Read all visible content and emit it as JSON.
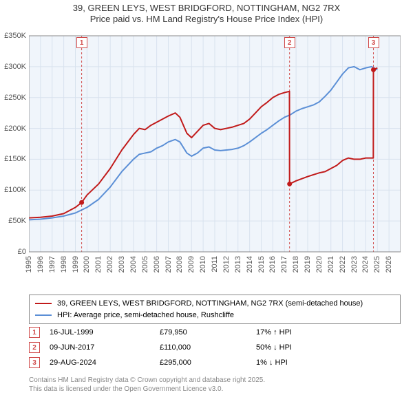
{
  "title": {
    "line1": "39, GREEN LEYS, WEST BRIDGFORD, NOTTINGHAM, NG2 7RX",
    "line2": "Price paid vs. HM Land Registry's House Price Index (HPI)",
    "fontsize": 13,
    "color": "#333333"
  },
  "chart": {
    "type": "line",
    "background_color": "#ffffff",
    "plot_bgcolor": "#f0f5fb",
    "grid_color": "#d8e2ee",
    "axis_color": "#888888",
    "tick_label_color": "#555555",
    "tick_fontsize": 11,
    "x": {
      "min": 1995,
      "max": 2027,
      "ticks": [
        1995,
        1996,
        1997,
        1998,
        1999,
        2000,
        2001,
        2002,
        2003,
        2004,
        2005,
        2006,
        2007,
        2008,
        2009,
        2010,
        2011,
        2012,
        2013,
        2014,
        2015,
        2016,
        2017,
        2018,
        2019,
        2020,
        2021,
        2022,
        2023,
        2024,
        2025,
        2026
      ]
    },
    "y": {
      "min": 0,
      "max": 350000,
      "ticks": [
        0,
        50000,
        100000,
        150000,
        200000,
        250000,
        300000,
        350000
      ],
      "tick_labels": [
        "£0",
        "£50K",
        "£100K",
        "£150K",
        "£200K",
        "£250K",
        "£300K",
        "£350K"
      ]
    },
    "marker_lines": {
      "color": "#d04a4a",
      "dash": "3,3",
      "width": 1,
      "years": [
        1999.54,
        2017.44,
        2024.66
      ]
    },
    "marker_badges": [
      {
        "n": "1",
        "year": 1999.54,
        "color": "#d04a4a"
      },
      {
        "n": "2",
        "year": 2017.44,
        "color": "#d04a4a"
      },
      {
        "n": "3",
        "year": 2024.66,
        "color": "#d04a4a"
      }
    ],
    "sale_points": {
      "color": "#c11a1a",
      "radius": 3.5,
      "points": [
        {
          "year": 1999.54,
          "value": 79950
        },
        {
          "year": 2017.44,
          "value": 110000
        },
        {
          "year": 2024.66,
          "value": 295000
        }
      ]
    },
    "series": [
      {
        "id": "price_paid",
        "label": "39, GREEN LEYS, WEST BRIDGFORD, NOTTINGHAM, NG2 7RX (semi-detached house)",
        "color": "#c11a1a",
        "width": 2,
        "points": [
          [
            1995.0,
            55000
          ],
          [
            1996.0,
            56000
          ],
          [
            1997.0,
            58000
          ],
          [
            1998.0,
            62000
          ],
          [
            1999.0,
            72000
          ],
          [
            1999.54,
            79950
          ],
          [
            2000.0,
            92000
          ],
          [
            2001.0,
            110000
          ],
          [
            2002.0,
            135000
          ],
          [
            2003.0,
            165000
          ],
          [
            2004.0,
            190000
          ],
          [
            2004.5,
            200000
          ],
          [
            2005.0,
            198000
          ],
          [
            2005.5,
            205000
          ],
          [
            2006.0,
            210000
          ],
          [
            2006.5,
            215000
          ],
          [
            2007.0,
            220000
          ],
          [
            2007.6,
            225000
          ],
          [
            2008.0,
            218000
          ],
          [
            2008.6,
            192000
          ],
          [
            2009.0,
            185000
          ],
          [
            2009.5,
            195000
          ],
          [
            2010.0,
            205000
          ],
          [
            2010.5,
            208000
          ],
          [
            2011.0,
            200000
          ],
          [
            2011.5,
            198000
          ],
          [
            2012.0,
            200000
          ],
          [
            2012.5,
            202000
          ],
          [
            2013.0,
            205000
          ],
          [
            2013.5,
            208000
          ],
          [
            2014.0,
            215000
          ],
          [
            2014.5,
            225000
          ],
          [
            2015.0,
            235000
          ],
          [
            2015.5,
            242000
          ],
          [
            2016.0,
            250000
          ],
          [
            2016.5,
            255000
          ],
          [
            2017.0,
            258000
          ],
          [
            2017.43,
            260000
          ],
          [
            2017.44,
            110000
          ],
          [
            2018.0,
            115000
          ],
          [
            2019.0,
            122000
          ],
          [
            2020.0,
            128000
          ],
          [
            2020.5,
            130000
          ],
          [
            2021.0,
            135000
          ],
          [
            2021.5,
            140000
          ],
          [
            2022.0,
            148000
          ],
          [
            2022.5,
            152000
          ],
          [
            2023.0,
            150000
          ],
          [
            2023.5,
            150000
          ],
          [
            2024.0,
            152000
          ],
          [
            2024.65,
            152000
          ],
          [
            2024.66,
            295000
          ],
          [
            2025.0,
            298000
          ]
        ]
      },
      {
        "id": "hpi",
        "label": "HPI: Average price, semi-detached house, Rushcliffe",
        "color": "#5b8fd6",
        "width": 2,
        "points": [
          [
            1995.0,
            52000
          ],
          [
            1996.0,
            53000
          ],
          [
            1997.0,
            55000
          ],
          [
            1998.0,
            58000
          ],
          [
            1999.0,
            63000
          ],
          [
            2000.0,
            72000
          ],
          [
            2001.0,
            85000
          ],
          [
            2002.0,
            105000
          ],
          [
            2003.0,
            130000
          ],
          [
            2004.0,
            150000
          ],
          [
            2004.5,
            158000
          ],
          [
            2005.0,
            160000
          ],
          [
            2005.5,
            162000
          ],
          [
            2006.0,
            168000
          ],
          [
            2006.5,
            172000
          ],
          [
            2007.0,
            178000
          ],
          [
            2007.6,
            182000
          ],
          [
            2008.0,
            178000
          ],
          [
            2008.6,
            160000
          ],
          [
            2009.0,
            155000
          ],
          [
            2009.5,
            160000
          ],
          [
            2010.0,
            168000
          ],
          [
            2010.5,
            170000
          ],
          [
            2011.0,
            165000
          ],
          [
            2011.5,
            164000
          ],
          [
            2012.0,
            165000
          ],
          [
            2012.5,
            166000
          ],
          [
            2013.0,
            168000
          ],
          [
            2013.5,
            172000
          ],
          [
            2014.0,
            178000
          ],
          [
            2014.5,
            185000
          ],
          [
            2015.0,
            192000
          ],
          [
            2015.5,
            198000
          ],
          [
            2016.0,
            205000
          ],
          [
            2016.5,
            212000
          ],
          [
            2017.0,
            218000
          ],
          [
            2017.5,
            222000
          ],
          [
            2018.0,
            228000
          ],
          [
            2018.5,
            232000
          ],
          [
            2019.0,
            235000
          ],
          [
            2019.5,
            238000
          ],
          [
            2020.0,
            243000
          ],
          [
            2020.5,
            252000
          ],
          [
            2021.0,
            262000
          ],
          [
            2021.5,
            275000
          ],
          [
            2022.0,
            288000
          ],
          [
            2022.5,
            298000
          ],
          [
            2023.0,
            300000
          ],
          [
            2023.5,
            295000
          ],
          [
            2024.0,
            298000
          ],
          [
            2024.5,
            300000
          ],
          [
            2025.0,
            295000
          ]
        ]
      }
    ]
  },
  "legend": {
    "border_color": "#888888",
    "fontsize": 11
  },
  "markers_table": {
    "rows": [
      {
        "n": "1",
        "date": "16-JUL-1999",
        "price": "£79,950",
        "delta": "17% ↑ HPI",
        "color": "#d04a4a"
      },
      {
        "n": "2",
        "date": "09-JUN-2017",
        "price": "£110,000",
        "delta": "50% ↓ HPI",
        "color": "#d04a4a"
      },
      {
        "n": "3",
        "date": "29-AUG-2024",
        "price": "£295,000",
        "delta": "1% ↓ HPI",
        "color": "#d04a4a"
      }
    ]
  },
  "footer": {
    "line1": "Contains HM Land Registry data © Crown copyright and database right 2025.",
    "line2": "This data is licensed under the Open Government Licence v3.0.",
    "color": "#888888"
  }
}
